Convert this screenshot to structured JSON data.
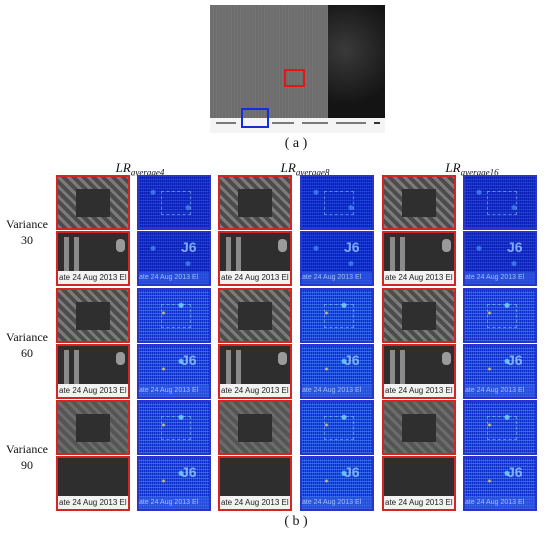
{
  "captions": {
    "top": "( a )",
    "bottom": "( b )"
  },
  "column_headers": [
    {
      "base": "LR",
      "sub": "average4"
    },
    {
      "base": "LR",
      "sub": "average8"
    },
    {
      "base": "LR",
      "sub": "average16"
    }
  ],
  "row_labels": [
    {
      "line1": "Variance",
      "line2": "30"
    },
    {
      "line1": "Variance",
      "line2": "60"
    },
    {
      "line1": "Variance",
      "line2": "90"
    }
  ],
  "tile_footer_text": "ate 24 Aug 2013 El",
  "colors": {
    "red_frame": "#d42424",
    "blue_frame": "#2a35c8",
    "error_map": "#0a1fb6"
  }
}
